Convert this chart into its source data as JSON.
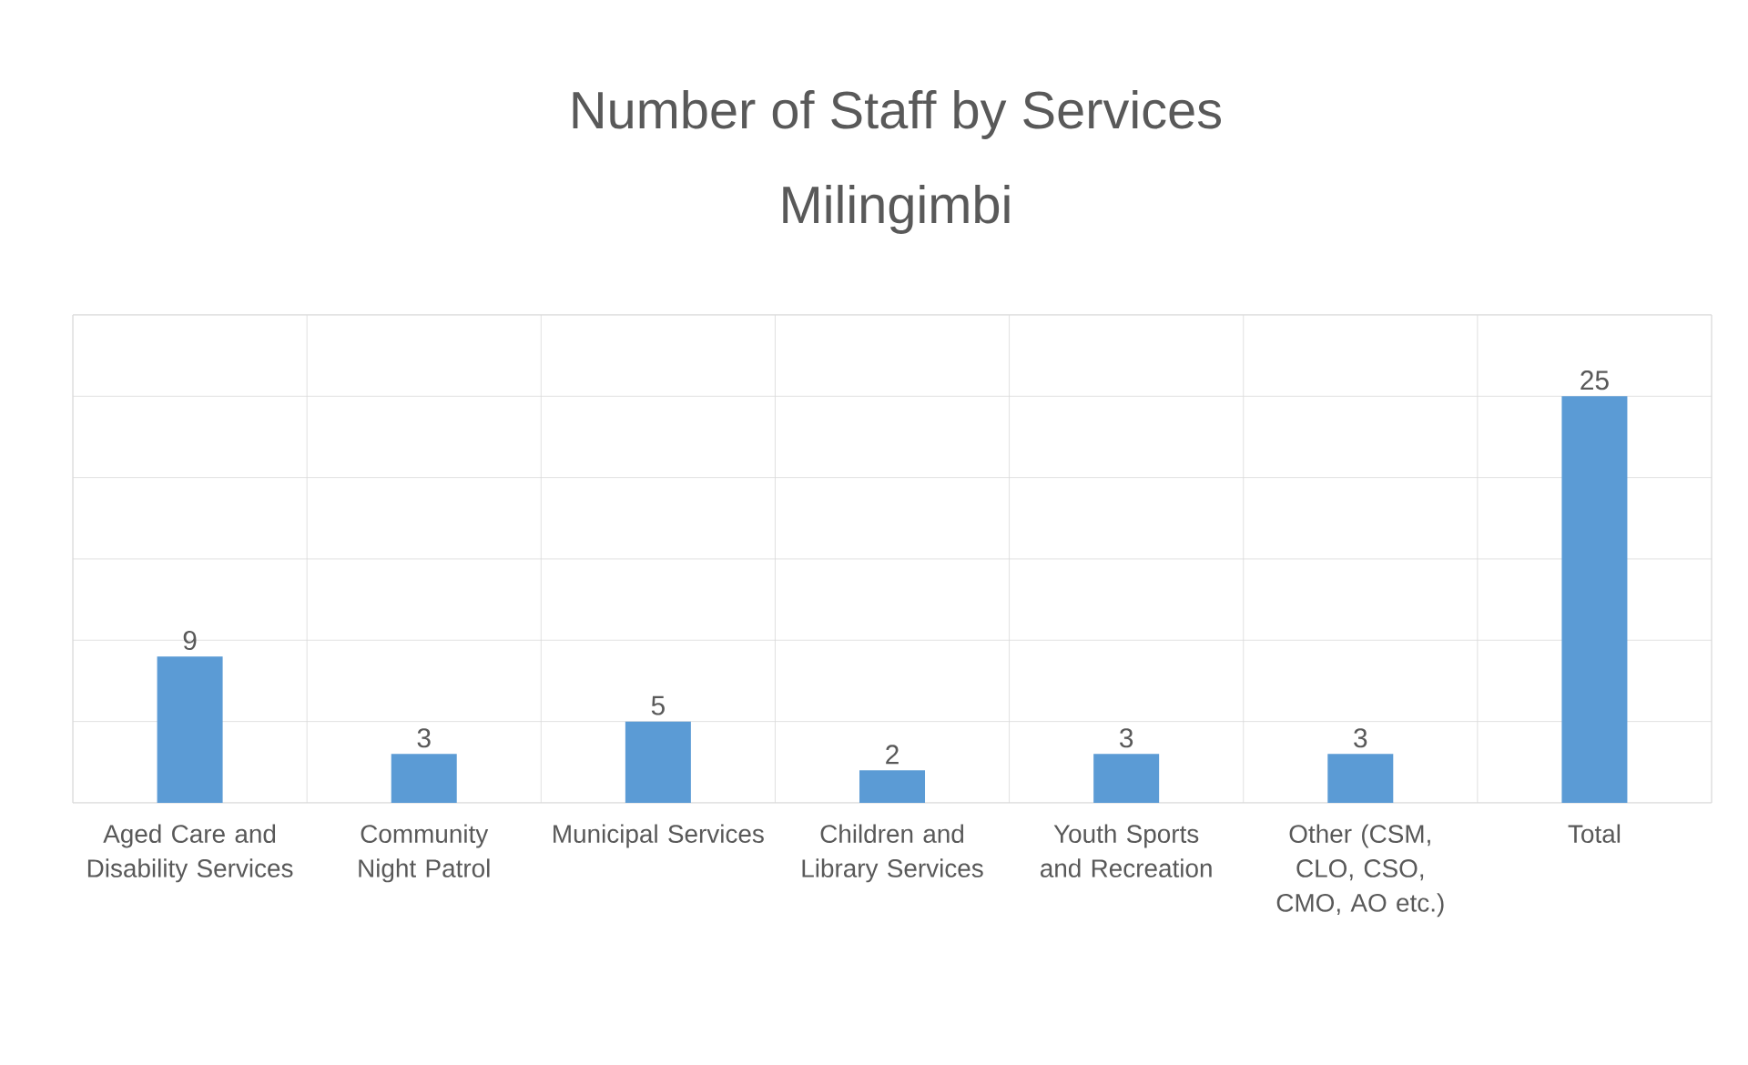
{
  "chart_data": {
    "type": "bar",
    "title": "Number of Staff by Services",
    "subtitle": "Milingimbi",
    "categories": [
      "Aged Care and Disability Services",
      "Community Night Patrol",
      "Municipal Services",
      "Children and Library Services",
      "Youth Sports and Recreation",
      "Other (CSM, CLO, CSO, CMO, AO etc.)",
      "Total"
    ],
    "values": [
      9,
      3,
      5,
      2,
      3,
      3,
      25
    ],
    "color": "#5b9bd5",
    "ylim": [
      0,
      30
    ],
    "yticks": [
      {
        "value": 0,
        "label": null
      },
      {
        "value": 5,
        "label": null
      },
      {
        "value": 10,
        "label": null
      },
      {
        "value": 15,
        "label": null
      },
      {
        "value": 20,
        "label": null
      },
      {
        "value": 25,
        "label": null
      },
      {
        "value": 30,
        "label": null
      }
    ],
    "tick_labels": "x",
    "grid": true,
    "data_labels": true
  }
}
